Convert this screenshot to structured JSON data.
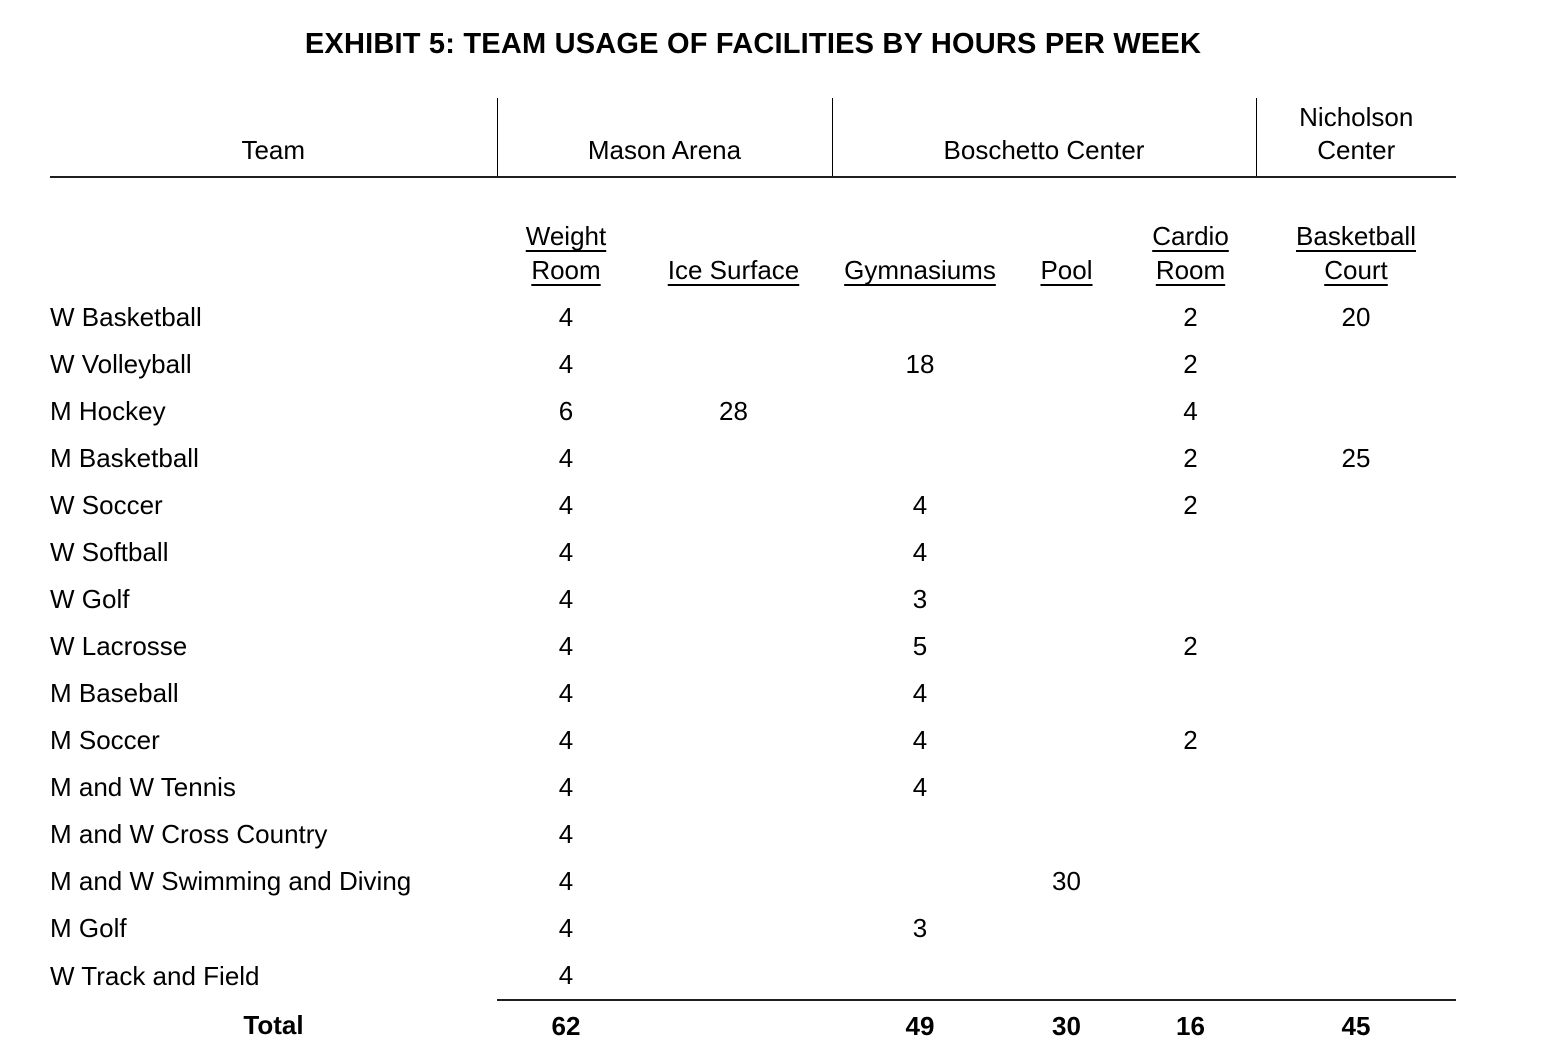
{
  "title": "EXHIBIT 5: TEAM USAGE OF FACILITIES BY HOURS PER WEEK",
  "table": {
    "group_headers": {
      "team": "Team",
      "mason_arena": "Mason Arena",
      "boschetto_center": "Boschetto Center",
      "nicholson_center": "Nicholson\nCenter"
    },
    "column_headers": {
      "weight_room": "Weight\nRoom",
      "ice_surface": "Ice Surface",
      "gymnasiums": "Gymnasiums",
      "pool": "Pool",
      "cardio_room": "Cardio\nRoom",
      "basketball_court": "Basketball\nCourt"
    },
    "rows": [
      {
        "team": "W Basketball",
        "weight_room": "4",
        "ice_surface": "",
        "gymnasiums": "",
        "pool": "",
        "cardio_room": "2",
        "basketball_court": "20"
      },
      {
        "team": "W Volleyball",
        "weight_room": "4",
        "ice_surface": "",
        "gymnasiums": "18",
        "pool": "",
        "cardio_room": "2",
        "basketball_court": ""
      },
      {
        "team": "M Hockey",
        "weight_room": "6",
        "ice_surface": "28",
        "gymnasiums": "",
        "pool": "",
        "cardio_room": "4",
        "basketball_court": ""
      },
      {
        "team": "M Basketball",
        "weight_room": "4",
        "ice_surface": "",
        "gymnasiums": "",
        "pool": "",
        "cardio_room": "2",
        "basketball_court": "25"
      },
      {
        "team": "W Soccer",
        "weight_room": "4",
        "ice_surface": "",
        "gymnasiums": "4",
        "pool": "",
        "cardio_room": "2",
        "basketball_court": ""
      },
      {
        "team": "W Softball",
        "weight_room": "4",
        "ice_surface": "",
        "gymnasiums": "4",
        "pool": "",
        "cardio_room": "",
        "basketball_court": ""
      },
      {
        "team": "W Golf",
        "weight_room": "4",
        "ice_surface": "",
        "gymnasiums": "3",
        "pool": "",
        "cardio_room": "",
        "basketball_court": ""
      },
      {
        "team": "W Lacrosse",
        "weight_room": "4",
        "ice_surface": "",
        "gymnasiums": "5",
        "pool": "",
        "cardio_room": "2",
        "basketball_court": ""
      },
      {
        "team": "M Baseball",
        "weight_room": "4",
        "ice_surface": "",
        "gymnasiums": "4",
        "pool": "",
        "cardio_room": "",
        "basketball_court": ""
      },
      {
        "team": "M Soccer",
        "weight_room": "4",
        "ice_surface": "",
        "gymnasiums": "4",
        "pool": "",
        "cardio_room": "2",
        "basketball_court": ""
      },
      {
        "team": "M and W Tennis",
        "weight_room": "4",
        "ice_surface": "",
        "gymnasiums": "4",
        "pool": "",
        "cardio_room": "",
        "basketball_court": ""
      },
      {
        "team": "M and W Cross Country",
        "weight_room": "4",
        "ice_surface": "",
        "gymnasiums": "",
        "pool": "",
        "cardio_room": "",
        "basketball_court": ""
      },
      {
        "team": "M and W Swimming and Diving",
        "weight_room": "4",
        "ice_surface": "",
        "gymnasiums": "",
        "pool": "30",
        "cardio_room": "",
        "basketball_court": ""
      },
      {
        "team": "M Golf",
        "weight_room": "4",
        "ice_surface": "",
        "gymnasiums": "3",
        "pool": "",
        "cardio_room": "",
        "basketball_court": ""
      },
      {
        "team": "W Track and Field",
        "weight_room": "4",
        "ice_surface": "",
        "gymnasiums": "",
        "pool": "",
        "cardio_room": "",
        "basketball_court": ""
      }
    ],
    "total": {
      "label": "Total",
      "weight_room": "62",
      "ice_surface": "",
      "gymnasiums": "49",
      "pool": "30",
      "cardio_room": "16",
      "basketball_court": "45"
    }
  }
}
